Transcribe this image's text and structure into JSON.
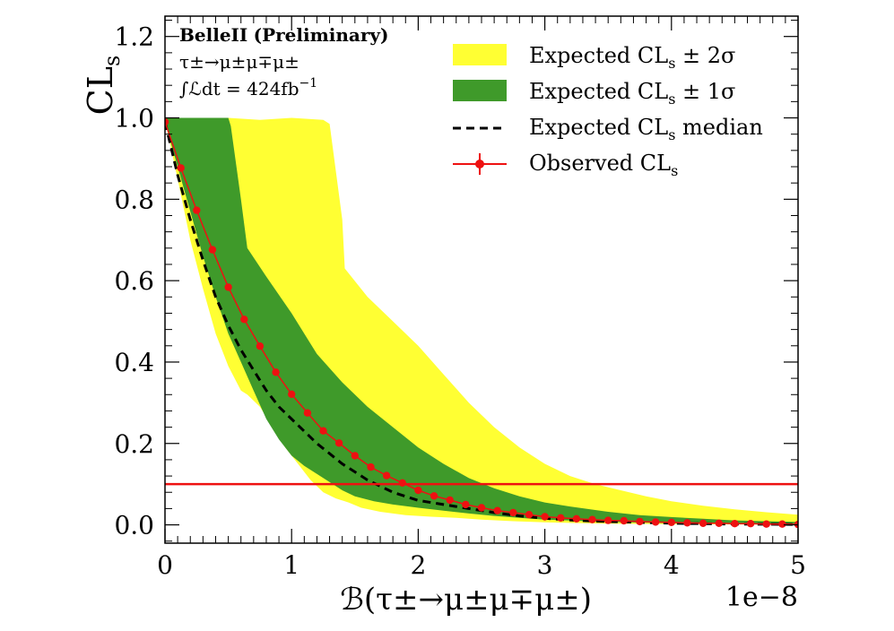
{
  "chart_data": {
    "type": "line",
    "experiment": "BelleII",
    "status": "(Preliminary)",
    "channel": "τ±→μ±μ∓μ±",
    "lumi_prefix": "∫ℒdt = 424fb",
    "lumi_exp": "−1",
    "xlabel": "ℬ(τ±→μ±μ∓μ±)",
    "xscale_label": "1e−8",
    "ylabel_main": "CL",
    "ylabel_sub": "s",
    "xlim": [
      0,
      5
    ],
    "ylim": [
      -0.045,
      1.25
    ],
    "xticks": [
      "0",
      "1",
      "2",
      "3",
      "4",
      "5"
    ],
    "xtick_values": [
      0,
      1,
      2,
      3,
      4,
      5
    ],
    "yticks": [
      "0.0",
      "0.2",
      "0.4",
      "0.6",
      "0.8",
      "1.0",
      "1.2"
    ],
    "ytick_values": [
      0.0,
      0.2,
      0.4,
      0.6,
      0.8,
      1.0,
      1.2
    ],
    "threshold": 0.1,
    "colors": {
      "band2": "#ffff33",
      "band1": "#3f9a2a",
      "observed": "#ee1111",
      "threshold": "#ee1111",
      "median": "#000000"
    },
    "legend": [
      {
        "label": "Expected CL",
        "sub": "s",
        "suffix": " ± 2σ",
        "style": "band2"
      },
      {
        "label": "Expected CL",
        "sub": "s",
        "suffix": " ± 1σ",
        "style": "band1"
      },
      {
        "label": "Expected CL",
        "sub": "s",
        "suffix": " median",
        "style": "median"
      },
      {
        "label": "Observed CL",
        "sub": "s",
        "suffix": "",
        "style": "observed"
      }
    ],
    "band2_upper": [
      [
        0,
        1.0
      ],
      [
        0.25,
        1.0
      ],
      [
        0.5,
        1.0
      ],
      [
        0.75,
        0.995
      ],
      [
        1.0,
        1.0
      ],
      [
        1.25,
        0.995
      ],
      [
        1.3,
        0.985
      ],
      [
        1.4,
        0.75
      ],
      [
        1.42,
        0.63
      ],
      [
        1.6,
        0.56
      ],
      [
        1.8,
        0.5
      ],
      [
        2.0,
        0.44
      ],
      [
        2.2,
        0.37
      ],
      [
        2.4,
        0.3
      ],
      [
        2.6,
        0.24
      ],
      [
        2.8,
        0.19
      ],
      [
        3.0,
        0.15
      ],
      [
        3.2,
        0.12
      ],
      [
        3.4,
        0.1
      ],
      [
        3.6,
        0.085
      ],
      [
        3.8,
        0.07
      ],
      [
        4.0,
        0.058
      ],
      [
        4.25,
        0.047
      ],
      [
        4.5,
        0.038
      ],
      [
        4.75,
        0.031
      ],
      [
        5.0,
        0.025
      ]
    ],
    "band2_lower": [
      [
        0,
        0.995
      ],
      [
        0.1,
        0.85
      ],
      [
        0.2,
        0.7
      ],
      [
        0.3,
        0.58
      ],
      [
        0.4,
        0.47
      ],
      [
        0.5,
        0.39
      ],
      [
        0.6,
        0.33
      ],
      [
        0.65,
        0.32
      ],
      [
        0.75,
        0.29
      ],
      [
        0.85,
        0.24
      ],
      [
        0.95,
        0.19
      ],
      [
        1.05,
        0.15
      ],
      [
        1.15,
        0.11
      ],
      [
        1.25,
        0.08
      ],
      [
        1.35,
        0.065
      ],
      [
        1.45,
        0.055
      ],
      [
        1.55,
        0.042
      ],
      [
        1.7,
        0.032
      ],
      [
        1.9,
        0.024
      ],
      [
        2.1,
        0.02
      ],
      [
        2.3,
        0.017
      ],
      [
        2.5,
        0.013
      ],
      [
        2.75,
        0.009
      ],
      [
        3.0,
        0.006
      ],
      [
        3.5,
        0.003
      ],
      [
        4.0,
        0.002
      ],
      [
        4.5,
        0.001
      ],
      [
        5.0,
        0.0
      ]
    ],
    "band1_upper": [
      [
        0,
        1.0
      ],
      [
        0.5,
        1.0
      ],
      [
        0.52,
        0.98
      ],
      [
        0.6,
        0.8
      ],
      [
        0.65,
        0.68
      ],
      [
        0.8,
        0.61
      ],
      [
        1.0,
        0.52
      ],
      [
        1.2,
        0.42
      ],
      [
        1.4,
        0.35
      ],
      [
        1.6,
        0.29
      ],
      [
        1.8,
        0.24
      ],
      [
        2.0,
        0.19
      ],
      [
        2.2,
        0.15
      ],
      [
        2.4,
        0.115
      ],
      [
        2.6,
        0.09
      ],
      [
        2.8,
        0.07
      ],
      [
        3.0,
        0.055
      ],
      [
        3.2,
        0.045
      ],
      [
        3.5,
        0.032
      ],
      [
        3.75,
        0.024
      ],
      [
        4.0,
        0.019
      ],
      [
        4.25,
        0.015
      ],
      [
        4.5,
        0.011
      ],
      [
        4.75,
        0.009
      ],
      [
        5.0,
        0.007
      ]
    ],
    "band1_lower": [
      [
        0,
        0.99
      ],
      [
        0.1,
        0.88
      ],
      [
        0.2,
        0.77
      ],
      [
        0.3,
        0.66
      ],
      [
        0.4,
        0.56
      ],
      [
        0.5,
        0.47
      ],
      [
        0.6,
        0.4
      ],
      [
        0.7,
        0.33
      ],
      [
        0.8,
        0.26
      ],
      [
        0.9,
        0.21
      ],
      [
        1.0,
        0.17
      ],
      [
        1.1,
        0.145
      ],
      [
        1.2,
        0.125
      ],
      [
        1.3,
        0.105
      ],
      [
        1.4,
        0.085
      ],
      [
        1.5,
        0.07
      ],
      [
        1.65,
        0.058
      ],
      [
        1.8,
        0.05
      ],
      [
        2.0,
        0.042
      ],
      [
        2.2,
        0.035
      ],
      [
        2.4,
        0.028
      ],
      [
        2.6,
        0.022
      ],
      [
        2.8,
        0.017
      ],
      [
        3.0,
        0.013
      ],
      [
        3.5,
        0.007
      ],
      [
        4.0,
        0.004
      ],
      [
        4.5,
        0.002
      ],
      [
        5.0,
        0.001
      ]
    ],
    "median": [
      [
        0,
        0.99
      ],
      [
        0.1,
        0.86
      ],
      [
        0.2,
        0.75
      ],
      [
        0.3,
        0.65
      ],
      [
        0.4,
        0.56
      ],
      [
        0.5,
        0.49
      ],
      [
        0.6,
        0.43
      ],
      [
        0.7,
        0.38
      ],
      [
        0.8,
        0.33
      ],
      [
        0.9,
        0.29
      ],
      [
        1.0,
        0.26
      ],
      [
        1.1,
        0.23
      ],
      [
        1.2,
        0.2
      ],
      [
        1.3,
        0.175
      ],
      [
        1.4,
        0.15
      ],
      [
        1.5,
        0.13
      ],
      [
        1.6,
        0.11
      ],
      [
        1.7,
        0.095
      ],
      [
        1.8,
        0.08
      ],
      [
        1.9,
        0.07
      ],
      [
        2.0,
        0.06
      ],
      [
        2.2,
        0.05
      ],
      [
        2.4,
        0.04
      ],
      [
        2.6,
        0.03
      ],
      [
        2.8,
        0.022
      ],
      [
        3.0,
        0.016
      ],
      [
        3.25,
        0.011
      ],
      [
        3.5,
        0.008
      ],
      [
        3.75,
        0.006
      ],
      [
        4.0,
        0.004
      ],
      [
        4.5,
        0.002
      ],
      [
        5.0,
        0.001
      ]
    ],
    "observed": [
      [
        0.0,
        0.99
      ],
      [
        0.125,
        0.877
      ],
      [
        0.25,
        0.773
      ],
      [
        0.375,
        0.676
      ],
      [
        0.5,
        0.584
      ],
      [
        0.625,
        0.505
      ],
      [
        0.75,
        0.439
      ],
      [
        0.875,
        0.375
      ],
      [
        1.0,
        0.321
      ],
      [
        1.125,
        0.275
      ],
      [
        1.25,
        0.231
      ],
      [
        1.375,
        0.201
      ],
      [
        1.5,
        0.17
      ],
      [
        1.625,
        0.142
      ],
      [
        1.75,
        0.121
      ],
      [
        1.875,
        0.103
      ],
      [
        2.0,
        0.085
      ],
      [
        2.125,
        0.071
      ],
      [
        2.25,
        0.061
      ],
      [
        2.375,
        0.05
      ],
      [
        2.5,
        0.042
      ],
      [
        2.625,
        0.035
      ],
      [
        2.75,
        0.03
      ],
      [
        2.875,
        0.025
      ],
      [
        3.0,
        0.02
      ],
      [
        3.125,
        0.017
      ],
      [
        3.25,
        0.015
      ],
      [
        3.375,
        0.013
      ],
      [
        3.5,
        0.011
      ],
      [
        3.625,
        0.01
      ],
      [
        3.75,
        0.008
      ],
      [
        3.875,
        0.007
      ],
      [
        4.0,
        0.006
      ],
      [
        4.125,
        0.005
      ],
      [
        4.25,
        0.004
      ],
      [
        4.375,
        0.004
      ],
      [
        4.5,
        0.003
      ],
      [
        4.625,
        0.003
      ],
      [
        4.75,
        0.002
      ],
      [
        4.875,
        0.002
      ],
      [
        5.0,
        0.001
      ]
    ]
  }
}
